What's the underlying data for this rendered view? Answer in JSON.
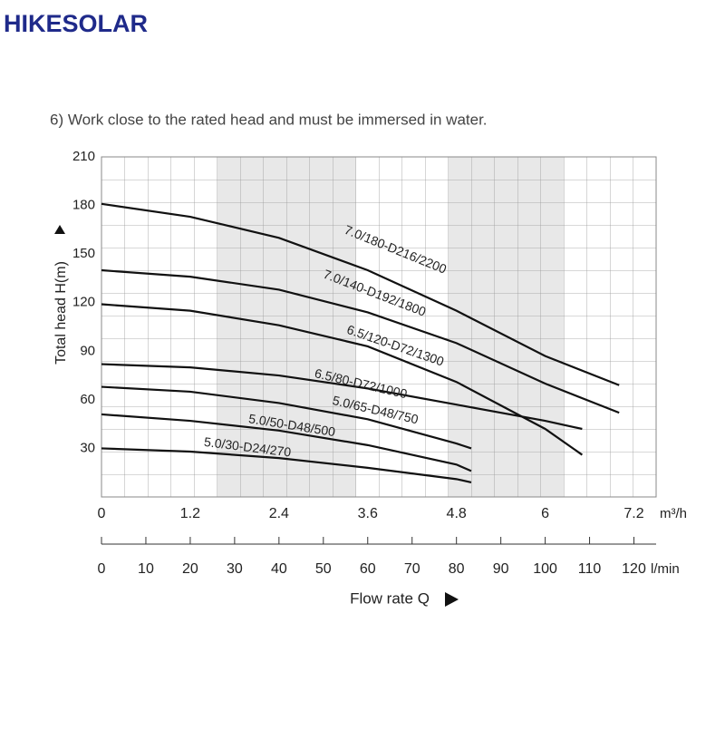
{
  "header": {
    "brand": "HIKESOLAR",
    "note": "6) Work close to the rated head and must be immersed in water."
  },
  "chart_data": {
    "type": "line",
    "y_label": "Total head H(m)",
    "x_label": "Flow rate Q",
    "x_unit": "m³/h",
    "x2_unit": "l/min",
    "xlim": [
      0,
      7.5
    ],
    "xticks": [
      0,
      1.2,
      2.4,
      3.6,
      4.8,
      6,
      7.2
    ],
    "x2lim": [
      0,
      125
    ],
    "x2ticks": [
      0,
      10,
      20,
      30,
      40,
      50,
      60,
      70,
      80,
      90,
      100,
      110,
      120
    ],
    "ylim": [
      0,
      210
    ],
    "yticks": [
      30,
      60,
      90,
      120,
      150,
      180,
      210
    ],
    "color": "#111111",
    "series": [
      {
        "name": "7.0/180-D216/2200",
        "x": [
          0,
          1.2,
          2.4,
          3.6,
          4.8,
          6,
          7.0
        ],
        "values": [
          181,
          173,
          160,
          140,
          115,
          87,
          69
        ]
      },
      {
        "name": "7.0/140-D192/1800",
        "x": [
          0,
          1.2,
          2.4,
          3.6,
          4.8,
          6,
          7.0
        ],
        "values": [
          140,
          136,
          128,
          114,
          95,
          70,
          52
        ]
      },
      {
        "name": "6.5/120-D72/1300",
        "x": [
          0,
          1.2,
          2.4,
          3.6,
          4.8,
          6,
          6.5
        ],
        "values": [
          119,
          115,
          106,
          93,
          71,
          42,
          26
        ]
      },
      {
        "name": "6.5/80-D72/1000",
        "x": [
          0,
          1.2,
          2.4,
          3.6,
          4.8,
          6,
          6.5
        ],
        "values": [
          82,
          80,
          75,
          67,
          57,
          47,
          42
        ]
      },
      {
        "name": "5.0/65-D48/750",
        "x": [
          0,
          1.2,
          2.4,
          3.6,
          4.8,
          5.0
        ],
        "values": [
          68,
          65,
          58,
          48,
          33,
          30
        ]
      },
      {
        "name": "5.0/50-D48/500",
        "x": [
          0,
          1.2,
          2.4,
          3.6,
          4.8,
          5.0
        ],
        "values": [
          51,
          47,
          41,
          32,
          20,
          16
        ]
      },
      {
        "name": "5.0/30-D24/270",
        "x": [
          0,
          1.2,
          2.4,
          3.6,
          4.8,
          5.0
        ],
        "values": [
          30,
          28,
          24,
          18,
          11,
          9
        ]
      }
    ]
  }
}
